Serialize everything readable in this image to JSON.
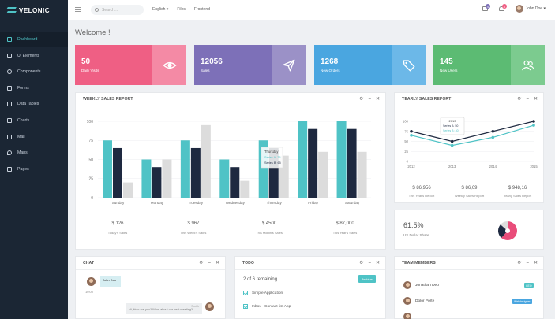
{
  "brand": {
    "name": "VELONIC"
  },
  "sidebar": {
    "items": [
      {
        "label": "Dashboard",
        "icon": "home-icon",
        "active": true
      },
      {
        "label": "UI Elements",
        "icon": "layers-icon"
      },
      {
        "label": "Components",
        "icon": "gear-icon"
      },
      {
        "label": "Forms",
        "icon": "edit-icon"
      },
      {
        "label": "Data Tables",
        "icon": "table-icon"
      },
      {
        "label": "Charts",
        "icon": "chart-icon"
      },
      {
        "label": "Mail",
        "icon": "mail-icon"
      },
      {
        "label": "Maps",
        "icon": "map-pin-icon"
      },
      {
        "label": "Pages",
        "icon": "file-icon"
      }
    ]
  },
  "topbar": {
    "search_placeholder": "Search...",
    "menu": [
      "English ▾",
      "Files",
      "Frontend"
    ],
    "mail_badge": "4",
    "notif_badge": "3",
    "user_name": "John Doe ▾"
  },
  "page": {
    "welcome": "Welcome !"
  },
  "stats": [
    {
      "value": "50",
      "label": "Daily Visits",
      "color": "#ef5f84",
      "icon_bg": "#f48aa5",
      "icon": "eye-icon"
    },
    {
      "value": "12056",
      "label": "Sales",
      "color": "#7d70b8",
      "icon_bg": "#9b91c7",
      "icon": "paper-plane-icon"
    },
    {
      "value": "1268",
      "label": "New Orders",
      "color": "#4aa6e0",
      "icon_bg": "#6cb8e8",
      "icon": "tag-icon"
    },
    {
      "value": "145",
      "label": "New Users",
      "color": "#5cbb73",
      "icon_bg": "#7ccb8f",
      "icon": "users-icon"
    }
  ],
  "weekly": {
    "title": "WEEKLY SALES REPORT",
    "tools": [
      "⟳",
      "–",
      "✕"
    ],
    "tooltip": {
      "title": "Thursday",
      "a": "Series A: 75",
      "b": "Series B: 65"
    },
    "totals": [
      {
        "value": "$ 126",
        "label": "Today's Sales"
      },
      {
        "value": "$ 967",
        "label": "This Week's Sales"
      },
      {
        "value": "$ 4500",
        "label": "This Month's Sales"
      },
      {
        "value": "$ 87,000",
        "label": "This Year's Sales"
      }
    ]
  },
  "yearly": {
    "title": "YEARLY SALES REPORT",
    "tools": [
      "⟳",
      "–",
      "✕"
    ],
    "tooltip": {
      "title": "2013",
      "a": "Series A: 50",
      "b": "Series B: 40"
    },
    "totals": [
      {
        "value": "$ 86,956",
        "label": "This Year's Report"
      },
      {
        "value": "$ 86,69",
        "label": "Weekly Sales Report"
      },
      {
        "value": "$ 948,16",
        "label": "Yearly Sales Report"
      }
    ]
  },
  "donut": {
    "percent": "61.5%",
    "label": "US Dollar Share"
  },
  "chat": {
    "title": "CHAT",
    "tools": [
      "⟳",
      "–",
      "✕"
    ],
    "user": "John Deo",
    "time": "10:00",
    "sender": "Smith",
    "message": "Hi, How are you? What about our next meeting?"
  },
  "todo": {
    "title": "TODO",
    "tools": [
      "⟳",
      "–",
      "✕"
    ],
    "remaining": "2 of 6 remaining",
    "button": "Archive",
    "items": [
      "Simple Application",
      "Inbox - Contact list App"
    ]
  },
  "team": {
    "title": "TEAM MEMBERS",
    "tools": [
      "⟳",
      "–",
      "✕"
    ],
    "members": [
      {
        "name": "Jonathan Deo",
        "badge": "CEO",
        "badge_color": "#4fc3c6"
      },
      {
        "name": "Dolor Porte",
        "badge": "Webdesigner",
        "badge_color": "#4aa6e0"
      }
    ]
  },
  "chart_data": [
    {
      "type": "bar",
      "categories": [
        "Sunday",
        "Monday",
        "Tuesday",
        "Wednesday",
        "Thursday",
        "Friday",
        "Saturday"
      ],
      "series": [
        {
          "name": "Series A",
          "color": "#4fc3c6",
          "values": [
            75,
            50,
            75,
            50,
            75,
            100,
            100
          ]
        },
        {
          "name": "Series B",
          "color": "#1e2940",
          "values": [
            65,
            40,
            65,
            40,
            65,
            90,
            90
          ]
        },
        {
          "color": "#dcdcdc",
          "values": [
            20,
            50,
            95,
            22,
            55,
            60,
            60
          ]
        }
      ],
      "yticks": [
        0,
        25,
        50,
        75,
        100
      ],
      "ylim": [
        0,
        100
      ],
      "grid": true
    },
    {
      "type": "line",
      "x": [
        "2012",
        "2013",
        "2014",
        "2015"
      ],
      "series": [
        {
          "name": "Series A",
          "color": "#1e2940",
          "values": [
            75,
            50,
            75,
            100
          ]
        },
        {
          "name": "Series B",
          "color": "#4fc3c6",
          "values": [
            65,
            40,
            60,
            90
          ]
        }
      ],
      "yticks": [
        0,
        25,
        50,
        75,
        100
      ],
      "ylim": [
        0,
        100
      ],
      "grid": true
    },
    {
      "type": "pie",
      "slices": [
        {
          "value": 61.5,
          "color": "#e94d7a"
        },
        {
          "value": 25,
          "color": "#1e2940"
        },
        {
          "value": 13.5,
          "color": "#dddddd"
        }
      ]
    }
  ]
}
